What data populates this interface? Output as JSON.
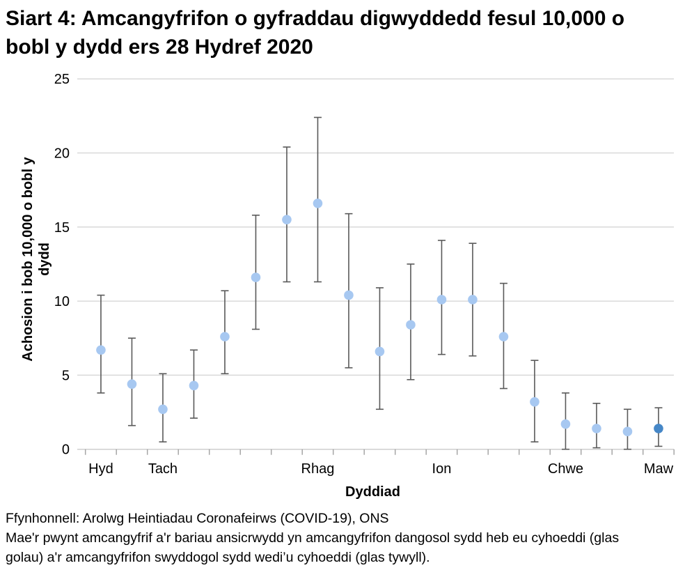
{
  "header": {
    "title": "Siart 4: Amcangyfrifon o gyfraddau digwyddedd fesul 10,000 o bobl y dydd ers 28 Hydref 2020"
  },
  "footer": {
    "source": "Ffynhonnell: Arolwg Heintiadau Coronafeirws (COVID-19), ONS",
    "note": "Mae'r pwynt amcangyfrif a'r bariau ansicrwydd yn amcangyfrifon dangosol sydd heb eu cyhoeddi (glas golau) a'r amcangyfrifon swyddogol sydd wedi’u cyhoeddi (glas tywyll)."
  },
  "chart_data": {
    "type": "scatter",
    "title": "Siart 4: Amcangyfrifon o gyfraddau digwyddedd fesul 10,000 o bobl y dydd ers 28 Hydref 2020",
    "xlabel": "Dyddiad",
    "ylabel": "Achosion i bob 10,000 o bobl y dydd",
    "ylim": [
      0,
      25
    ],
    "yticks": [
      0,
      5,
      10,
      15,
      20,
      25
    ],
    "grid": "horizontal",
    "legend": "none (described in footnote: light blue = unpublished indicative estimates, dark blue = published official estimates)",
    "x_month_labels": [
      {
        "label": "Hyd",
        "point_index": 0
      },
      {
        "label": "Tach",
        "point_index": 2
      },
      {
        "label": "Rhag",
        "point_index": 7
      },
      {
        "label": "Ion",
        "point_index": 11
      },
      {
        "label": "Chwe",
        "point_index": 15
      },
      {
        "label": "Maw",
        "point_index": 18
      }
    ],
    "points": [
      {
        "value": 6.7,
        "lo": 3.8,
        "hi": 10.4,
        "published": false
      },
      {
        "value": 4.4,
        "lo": 1.6,
        "hi": 7.5,
        "published": false
      },
      {
        "value": 2.7,
        "lo": 0.5,
        "hi": 5.1,
        "published": false
      },
      {
        "value": 4.3,
        "lo": 2.1,
        "hi": 6.7,
        "published": false
      },
      {
        "value": 7.6,
        "lo": 5.1,
        "hi": 10.7,
        "published": false
      },
      {
        "value": 11.6,
        "lo": 8.1,
        "hi": 15.8,
        "published": false
      },
      {
        "value": 15.5,
        "lo": 11.3,
        "hi": 20.4,
        "published": false
      },
      {
        "value": 16.6,
        "lo": 11.3,
        "hi": 22.4,
        "published": false
      },
      {
        "value": 10.4,
        "lo": 5.5,
        "hi": 15.9,
        "published": false
      },
      {
        "value": 6.6,
        "lo": 2.7,
        "hi": 10.9,
        "published": false
      },
      {
        "value": 8.4,
        "lo": 4.7,
        "hi": 12.5,
        "published": false
      },
      {
        "value": 10.1,
        "lo": 6.4,
        "hi": 14.1,
        "published": false
      },
      {
        "value": 10.1,
        "lo": 6.3,
        "hi": 13.9,
        "published": false
      },
      {
        "value": 7.6,
        "lo": 4.1,
        "hi": 11.2,
        "published": false
      },
      {
        "value": 3.2,
        "lo": 0.5,
        "hi": 6.0,
        "published": false
      },
      {
        "value": 1.7,
        "lo": 0.0,
        "hi": 3.8,
        "published": false
      },
      {
        "value": 1.4,
        "lo": 0.1,
        "hi": 3.1,
        "published": false
      },
      {
        "value": 1.2,
        "lo": 0.0,
        "hi": 2.7,
        "published": false
      },
      {
        "value": 1.4,
        "lo": 0.2,
        "hi": 2.8,
        "published": true
      }
    ],
    "colors": {
      "indicative_point": "#a7c8f1",
      "official_point": "#4687c7",
      "error_bar": "#595959",
      "gridline": "#d9d9d9",
      "axis_line": "#cfcfcf",
      "tick": "#a6a6a6",
      "text": "#000000"
    }
  }
}
